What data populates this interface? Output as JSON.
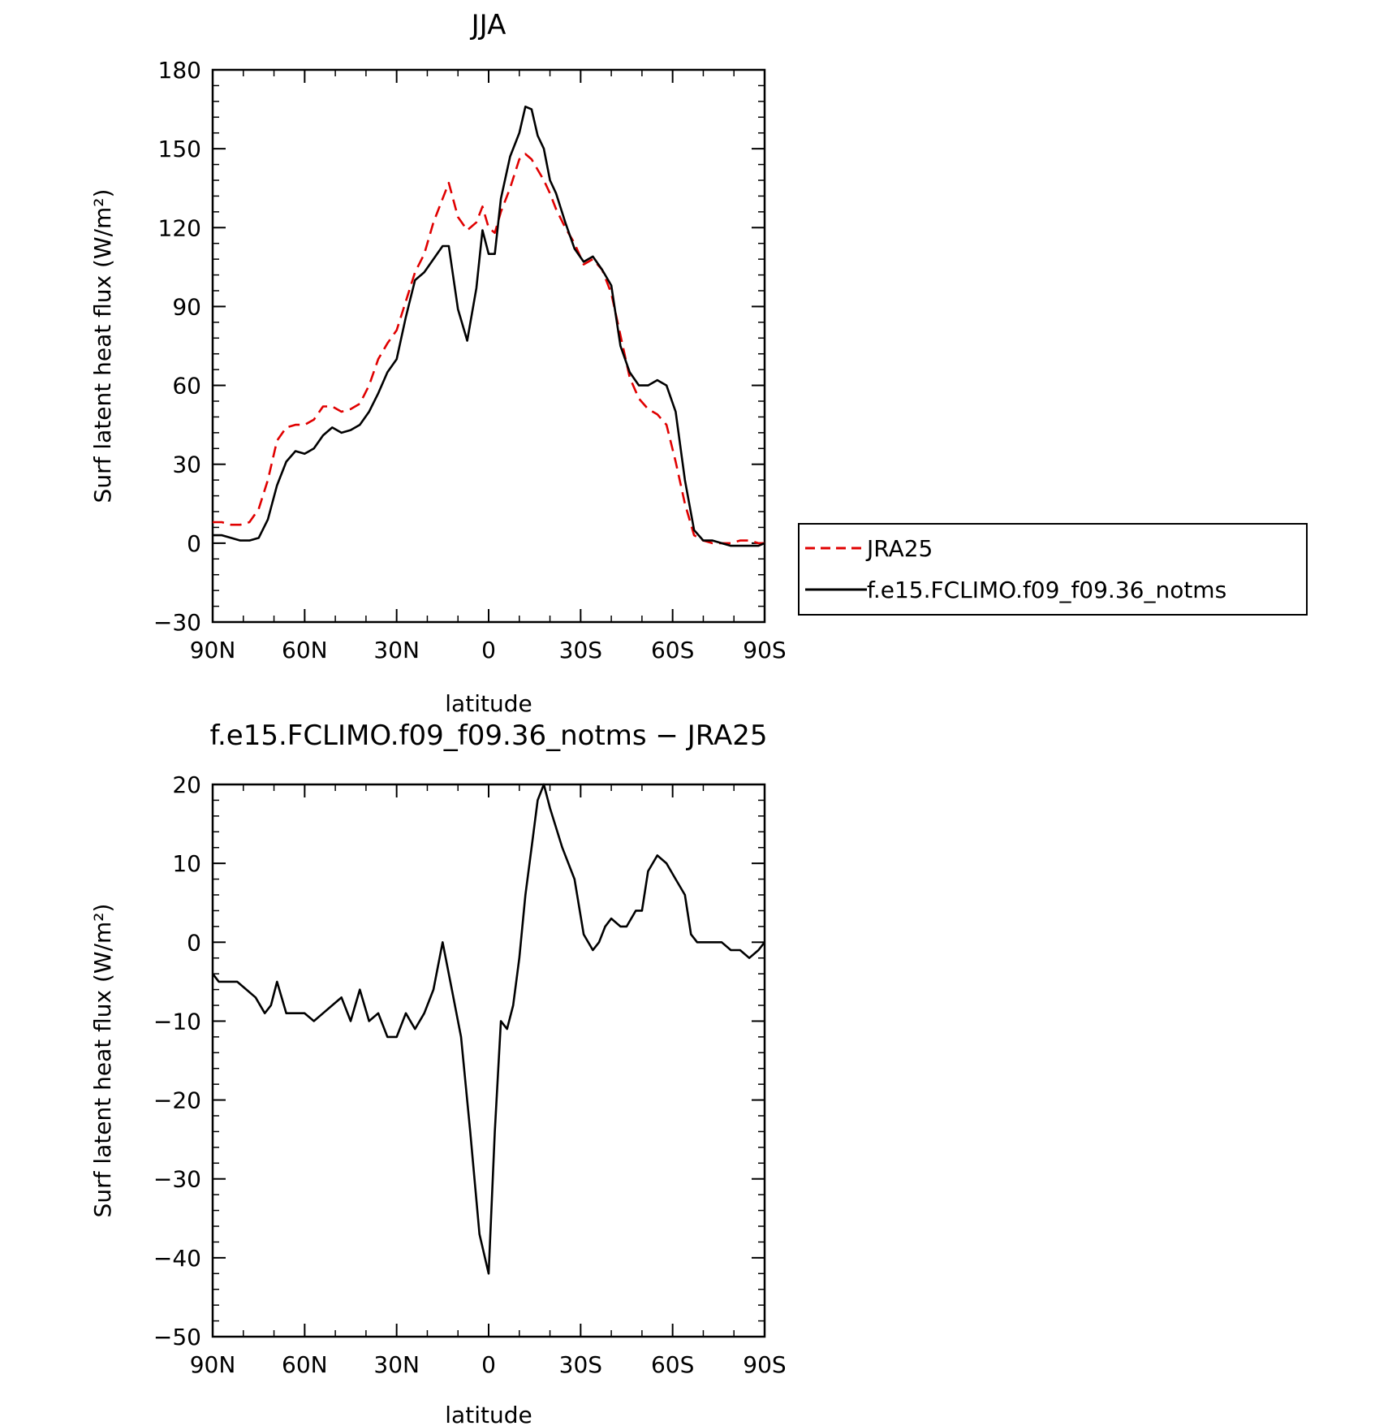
{
  "chart_data": [
    {
      "type": "line",
      "title": "JJA",
      "xlabel": "latitude",
      "ylabel": "Surf latent heat flux (W/m²)",
      "ylim": [
        -30,
        180
      ],
      "xlim": [
        -90,
        90
      ],
      "yticks": [
        -30,
        0,
        30,
        60,
        90,
        120,
        150,
        180
      ],
      "xticks": [
        -90,
        -60,
        -30,
        0,
        30,
        60,
        90
      ],
      "xtick_labels": [
        "90N",
        "60N",
        "30N",
        "0",
        "30S",
        "60S",
        "90S"
      ],
      "legend_placement": "right",
      "series": [
        {
          "name": "JRA25",
          "color": "#e00000",
          "dashed": true,
          "x": [
            -90,
            -87,
            -84,
            -81,
            -78,
            -75,
            -72,
            -69,
            -66,
            -63,
            -60,
            -57,
            -54,
            -51,
            -48,
            -45,
            -42,
            -39,
            -36,
            -33,
            -30,
            -27,
            -24,
            -21,
            -18,
            -15,
            -13,
            -10,
            -7,
            -4,
            -2,
            0,
            2,
            4,
            7,
            10,
            12,
            14,
            16,
            18,
            20,
            22,
            25,
            28,
            31,
            34,
            37,
            40,
            43,
            46,
            49,
            52,
            55,
            58,
            61,
            64,
            67,
            70,
            73,
            76,
            79,
            82,
            85,
            88,
            90
          ],
          "values": [
            8,
            8,
            7,
            7,
            8,
            13,
            24,
            39,
            44,
            45,
            45,
            47,
            52,
            52,
            50,
            51,
            53,
            60,
            70,
            76,
            81,
            92,
            103,
            110,
            122,
            131,
            137,
            124,
            119,
            122,
            128,
            120,
            118,
            126,
            135,
            146,
            148,
            146,
            142,
            138,
            133,
            127,
            120,
            114,
            106,
            108,
            104,
            95,
            79,
            63,
            55,
            51,
            49,
            45,
            31,
            15,
            3,
            1,
            0,
            0,
            0,
            1,
            1,
            0,
            0
          ]
        },
        {
          "name": "f.e15.FCLIMO.f09_f09.36_notms",
          "color": "#000000",
          "dashed": false,
          "x": [
            -90,
            -87,
            -84,
            -81,
            -78,
            -75,
            -72,
            -69,
            -66,
            -63,
            -60,
            -57,
            -54,
            -51,
            -48,
            -45,
            -42,
            -39,
            -36,
            -33,
            -30,
            -27,
            -24,
            -21,
            -18,
            -15,
            -13,
            -10,
            -7,
            -4,
            -2,
            0,
            2,
            4,
            7,
            10,
            12,
            14,
            16,
            18,
            20,
            22,
            25,
            28,
            31,
            34,
            37,
            40,
            43,
            46,
            49,
            52,
            55,
            58,
            61,
            64,
            67,
            70,
            73,
            76,
            79,
            82,
            85,
            88,
            90
          ],
          "values": [
            3,
            3,
            2,
            1,
            1,
            2,
            9,
            22,
            31,
            35,
            34,
            36,
            41,
            44,
            42,
            43,
            45,
            50,
            57,
            65,
            70,
            86,
            100,
            103,
            108,
            113,
            113,
            89,
            77,
            97,
            119,
            110,
            110,
            131,
            147,
            156,
            166,
            165,
            155,
            150,
            138,
            133,
            122,
            112,
            107,
            109,
            104,
            98,
            75,
            65,
            60,
            60,
            62,
            60,
            50,
            24,
            5,
            1,
            1,
            0,
            -1,
            -1,
            -1,
            -1,
            0
          ]
        }
      ]
    },
    {
      "type": "line",
      "title": "f.e15.FCLIMO.f09_f09.36_notms − JRA25",
      "xlabel": "latitude",
      "ylabel": "Surf latent heat flux (W/m²)",
      "ylim": [
        -50,
        20
      ],
      "xlim": [
        -90,
        90
      ],
      "yticks": [
        -50,
        -40,
        -30,
        -20,
        -10,
        0,
        10,
        20
      ],
      "xticks": [
        -90,
        -60,
        -30,
        0,
        30,
        60,
        90
      ],
      "xtick_labels": [
        "90N",
        "60N",
        "30N",
        "0",
        "30S",
        "60S",
        "90S"
      ],
      "series": [
        {
          "color": "#000000",
          "dashed": false,
          "x": [
            -90,
            -88,
            -85,
            -82,
            -79,
            -76,
            -73,
            -71,
            -69,
            -66,
            -63,
            -60,
            -57,
            -54,
            -51,
            -48,
            -45,
            -42,
            -39,
            -36,
            -33,
            -30,
            -27,
            -24,
            -21,
            -18,
            -15,
            -12,
            -9,
            -6,
            -3,
            0,
            2,
            4,
            6,
            8,
            10,
            12,
            14,
            16,
            18,
            20,
            24,
            28,
            31,
            34,
            36,
            38,
            40,
            43,
            45,
            48,
            50,
            52,
            55,
            58,
            61,
            64,
            66,
            68,
            70,
            73,
            76,
            79,
            82,
            85,
            88,
            90
          ],
          "values": [
            -4,
            -5,
            -5,
            -5,
            -6,
            -7,
            -9,
            -8,
            -5,
            -9,
            -9,
            -9,
            -10,
            -9,
            -8,
            -7,
            -10,
            -6,
            -10,
            -9,
            -12,
            -12,
            -9,
            -11,
            -9,
            -6,
            0,
            -6,
            -12,
            -24,
            -37,
            -42,
            -24,
            -10,
            -11,
            -8,
            -2,
            6,
            12,
            18,
            20,
            17,
            12,
            8,
            1,
            -1,
            0,
            2,
            3,
            2,
            2,
            4,
            4,
            9,
            11,
            10,
            8,
            6,
            1,
            0,
            0,
            0,
            0,
            -1,
            -1,
            -2,
            -1,
            0
          ]
        }
      ]
    }
  ]
}
